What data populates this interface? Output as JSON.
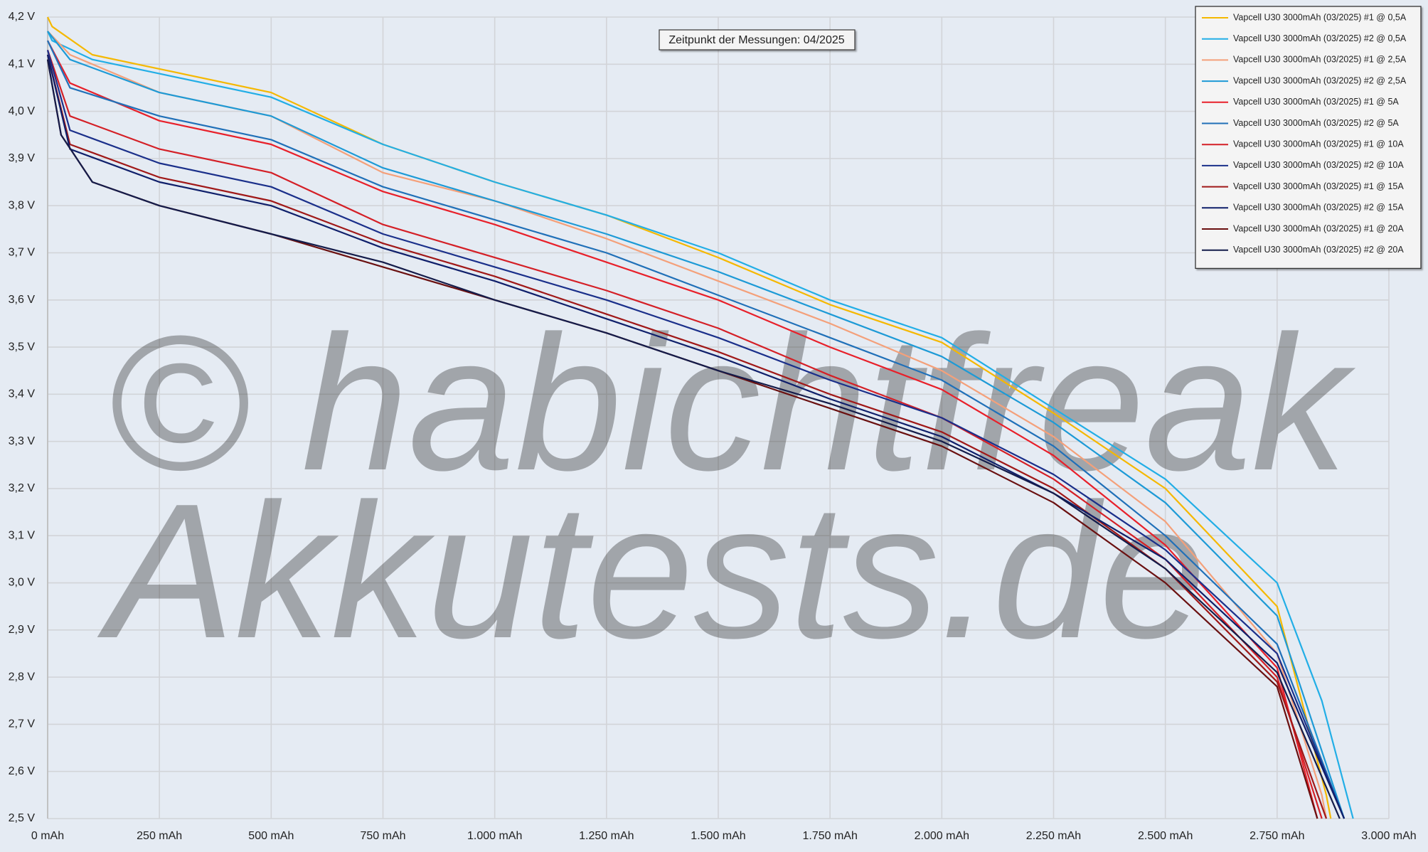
{
  "chart_data": {
    "type": "line",
    "annotation": "Zeitpunkt der Messungen: 04/2025",
    "watermark": [
      "© habichtfreak",
      "Akkutests.de"
    ],
    "grid": true,
    "legend": "upper right",
    "xlim": [
      0,
      3000
    ],
    "ylim": [
      2.5,
      4.2
    ],
    "xticks": [
      {
        "value": 0,
        "label": "0 mAh"
      },
      {
        "value": 250,
        "label": "250 mAh"
      },
      {
        "value": 500,
        "label": "500 mAh"
      },
      {
        "value": 750,
        "label": "750 mAh"
      },
      {
        "value": 1000,
        "label": "1.000 mAh"
      },
      {
        "value": 1250,
        "label": "1.250 mAh"
      },
      {
        "value": 1500,
        "label": "1.500 mAh"
      },
      {
        "value": 1750,
        "label": "1.750 mAh"
      },
      {
        "value": 2000,
        "label": "2.000 mAh"
      },
      {
        "value": 2250,
        "label": "2.250 mAh"
      },
      {
        "value": 2500,
        "label": "2.500 mAh"
      },
      {
        "value": 2750,
        "label": "2.750 mAh"
      },
      {
        "value": 3000,
        "label": "3.000 mAh"
      }
    ],
    "yticks": [
      {
        "value": 2.5,
        "label": "2,5 V"
      },
      {
        "value": 2.6,
        "label": "2,6 V"
      },
      {
        "value": 2.7,
        "label": "2,7 V"
      },
      {
        "value": 2.8,
        "label": "2,8 V"
      },
      {
        "value": 2.9,
        "label": "2,9 V"
      },
      {
        "value": 3.0,
        "label": "3,0 V"
      },
      {
        "value": 3.1,
        "label": "3,1 V"
      },
      {
        "value": 3.2,
        "label": "3,2 V"
      },
      {
        "value": 3.3,
        "label": "3,3 V"
      },
      {
        "value": 3.4,
        "label": "3,4 V"
      },
      {
        "value": 3.5,
        "label": "3,5 V"
      },
      {
        "value": 3.6,
        "label": "3,6 V"
      },
      {
        "value": 3.7,
        "label": "3,7 V"
      },
      {
        "value": 3.8,
        "label": "3,8 V"
      },
      {
        "value": 3.9,
        "label": "3,9 V"
      },
      {
        "value": 4.0,
        "label": "4,0 V"
      },
      {
        "value": 4.1,
        "label": "4,1 V"
      },
      {
        "value": 4.2,
        "label": "4,2 V"
      }
    ],
    "series": [
      {
        "name": "Vapcell U30 3000mAh (03/2025) #1 @ 0,5A",
        "color": "#f5b800",
        "x": [
          0,
          10,
          100,
          250,
          500,
          750,
          1000,
          1250,
          1500,
          1750,
          2000,
          2250,
          2500,
          2750,
          2860,
          2870
        ],
        "values": [
          4.2,
          4.18,
          4.12,
          4.09,
          4.04,
          3.93,
          3.85,
          3.78,
          3.69,
          3.59,
          3.51,
          3.36,
          3.2,
          2.95,
          2.55,
          2.5
        ]
      },
      {
        "name": "Vapcell U30 3000mAh (03/2025) #2 @ 0,5A",
        "color": "#22aee6",
        "x": [
          0,
          10,
          100,
          250,
          500,
          750,
          1000,
          1250,
          1500,
          1750,
          2000,
          2250,
          2500,
          2750,
          2850,
          2920
        ],
        "values": [
          4.17,
          4.15,
          4.11,
          4.08,
          4.03,
          3.93,
          3.85,
          3.78,
          3.7,
          3.6,
          3.52,
          3.37,
          3.22,
          3.0,
          2.75,
          2.5
        ]
      },
      {
        "name": "Vapcell U30 3000mAh (03/2025) #1 @ 2,5A",
        "color": "#f4a07a",
        "x": [
          0,
          50,
          250,
          500,
          750,
          1000,
          1250,
          1500,
          1750,
          2000,
          2250,
          2500,
          2750,
          2850,
          2860
        ],
        "values": [
          4.17,
          4.12,
          4.04,
          3.99,
          3.87,
          3.81,
          3.73,
          3.64,
          3.55,
          3.45,
          3.31,
          3.13,
          2.85,
          2.55,
          2.5
        ]
      },
      {
        "name": "Vapcell U30 3000mAh (03/2025) #2 @ 2,5A",
        "color": "#1d9ad6",
        "x": [
          0,
          50,
          250,
          500,
          750,
          1000,
          1250,
          1500,
          1750,
          2000,
          2250,
          2500,
          2750,
          2900
        ],
        "values": [
          4.17,
          4.11,
          4.04,
          3.99,
          3.88,
          3.81,
          3.74,
          3.66,
          3.57,
          3.48,
          3.34,
          3.17,
          2.93,
          2.5
        ]
      },
      {
        "name": "Vapcell U30 3000mAh (03/2025) #1 @ 5A",
        "color": "#e8202a",
        "x": [
          0,
          50,
          250,
          500,
          750,
          1000,
          1250,
          1500,
          1750,
          2000,
          2250,
          2500,
          2750,
          2840
        ],
        "values": [
          4.15,
          4.06,
          3.98,
          3.93,
          3.83,
          3.76,
          3.68,
          3.6,
          3.5,
          3.41,
          3.27,
          3.08,
          2.82,
          2.5
        ]
      },
      {
        "name": "Vapcell U30 3000mAh (03/2025) #2 @ 5A",
        "color": "#2070b8",
        "x": [
          0,
          50,
          250,
          500,
          750,
          1000,
          1250,
          1500,
          1750,
          2000,
          2250,
          2500,
          2750,
          2900
        ],
        "values": [
          4.15,
          4.05,
          3.99,
          3.94,
          3.84,
          3.77,
          3.7,
          3.61,
          3.52,
          3.43,
          3.29,
          3.1,
          2.87,
          2.5
        ]
      },
      {
        "name": "Vapcell U30 3000mAh (03/2025) #1 @ 10A",
        "color": "#d41f26",
        "x": [
          0,
          50,
          250,
          500,
          750,
          1000,
          1250,
          1500,
          1750,
          2000,
          2250,
          2500,
          2750,
          2850
        ],
        "values": [
          4.13,
          3.99,
          3.92,
          3.87,
          3.76,
          3.69,
          3.62,
          3.54,
          3.44,
          3.35,
          3.22,
          3.05,
          2.8,
          2.5
        ]
      },
      {
        "name": "Vapcell U30 3000mAh (03/2025) #2 @ 10A",
        "color": "#1a2f8a",
        "x": [
          0,
          50,
          250,
          500,
          750,
          1000,
          1250,
          1500,
          1750,
          2000,
          2250,
          2500,
          2750,
          2900
        ],
        "values": [
          4.13,
          3.96,
          3.89,
          3.84,
          3.74,
          3.67,
          3.6,
          3.52,
          3.43,
          3.35,
          3.23,
          3.07,
          2.85,
          2.5
        ]
      },
      {
        "name": "Vapcell U30 3000mAh (03/2025) #1 @ 15A",
        "color": "#a01818",
        "x": [
          0,
          50,
          250,
          500,
          750,
          1000,
          1250,
          1500,
          1750,
          2000,
          2250,
          2500,
          2750,
          2860
        ],
        "values": [
          4.12,
          3.93,
          3.86,
          3.81,
          3.72,
          3.65,
          3.57,
          3.49,
          3.4,
          3.32,
          3.2,
          3.03,
          2.79,
          2.5
        ]
      },
      {
        "name": "Vapcell U30 3000mAh (03/2025) #2 @ 15A",
        "color": "#0f1f6a",
        "x": [
          0,
          50,
          250,
          500,
          750,
          1000,
          1250,
          1500,
          1750,
          2000,
          2250,
          2500,
          2750,
          2900
        ],
        "values": [
          4.12,
          3.92,
          3.85,
          3.8,
          3.71,
          3.64,
          3.56,
          3.48,
          3.39,
          3.31,
          3.19,
          3.05,
          2.83,
          2.5
        ]
      },
      {
        "name": "Vapcell U30 3000mAh (03/2025) #1 @ 20A",
        "color": "#6a1010",
        "x": [
          0,
          30,
          100,
          250,
          500,
          750,
          1000,
          1250,
          1500,
          1750,
          2000,
          2250,
          2500,
          2750,
          2840
        ],
        "values": [
          4.11,
          3.95,
          3.85,
          3.8,
          3.74,
          3.67,
          3.6,
          3.53,
          3.45,
          3.37,
          3.29,
          3.17,
          3.0,
          2.78,
          2.5
        ]
      },
      {
        "name": "Vapcell U30 3000mAh (03/2025) #2 @ 20A",
        "color": "#141c4a",
        "x": [
          0,
          30,
          100,
          250,
          500,
          750,
          1000,
          1250,
          1500,
          1750,
          2000,
          2250,
          2500,
          2750,
          2890
        ],
        "values": [
          4.11,
          3.95,
          3.85,
          3.8,
          3.74,
          3.68,
          3.6,
          3.53,
          3.45,
          3.38,
          3.3,
          3.19,
          3.03,
          2.81,
          2.5
        ]
      }
    ]
  }
}
